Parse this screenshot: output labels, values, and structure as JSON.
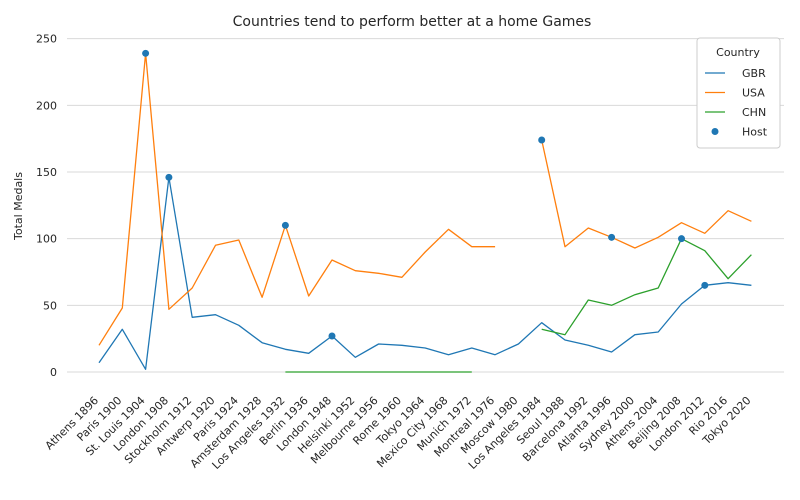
{
  "chart_data": {
    "type": "line",
    "title": "Countries tend to perform better at a home Games",
    "xlabel": "",
    "ylabel": "Total Medals",
    "ylim": [
      -12,
      252
    ],
    "yticks": [
      0,
      50,
      100,
      150,
      200,
      250
    ],
    "grid": "horizontal",
    "categories": [
      "Athens 1896",
      "Paris 1900",
      "St. Louis 1904",
      "London 1908",
      "Stockholm 1912",
      "Antwerp 1920",
      "Paris 1924",
      "Amsterdam 1928",
      "Los Angeles 1932",
      "Berlin 1936",
      "London 1948",
      "Helsinki 1952",
      "Melbourne 1956",
      "Rome 1960",
      "Tokyo 1964",
      "Mexico City 1968",
      "Munich 1972",
      "Montreal 1976",
      "Moscow 1980",
      "Los Angeles 1984",
      "Seoul 1988",
      "Barcelona 1992",
      "Atlanta 1996",
      "Sydney 2000",
      "Athens 2004",
      "Beijing 2008",
      "London 2012",
      "Rio 2016",
      "Tokyo 2020"
    ],
    "series": [
      {
        "name": "GBR",
        "color": "#1f77b4",
        "values": [
          7,
          32,
          2,
          146,
          41,
          43,
          35,
          22,
          17,
          14,
          27,
          11,
          21,
          20,
          18,
          13,
          18,
          13,
          21,
          37,
          24,
          20,
          15,
          28,
          30,
          51,
          65,
          67,
          65
        ]
      },
      {
        "name": "USA",
        "color": "#ff7f0e",
        "values": [
          20,
          48,
          239,
          47,
          63,
          95,
          99,
          56,
          110,
          57,
          84,
          76,
          74,
          71,
          90,
          107,
          94,
          94,
          null,
          174,
          94,
          108,
          101,
          93,
          101,
          112,
          104,
          121,
          113
        ]
      },
      {
        "name": "CHN",
        "color": "#2ca02c",
        "values": [
          null,
          null,
          null,
          null,
          null,
          null,
          null,
          null,
          0,
          0,
          0,
          0,
          0,
          0,
          0,
          0,
          0,
          null,
          null,
          32,
          28,
          54,
          50,
          58,
          63,
          100,
          91,
          70,
          88
        ]
      }
    ],
    "host": {
      "name": "Host",
      "color": "#1f77b4",
      "points": [
        {
          "x": "St. Louis 1904",
          "y": 239
        },
        {
          "x": "London 1908",
          "y": 146
        },
        {
          "x": "Los Angeles 1932",
          "y": 110
        },
        {
          "x": "London 1948",
          "y": 27
        },
        {
          "x": "Los Angeles 1984",
          "y": 174
        },
        {
          "x": "Atlanta 1996",
          "y": 101
        },
        {
          "x": "Beijing 2008",
          "y": 100
        },
        {
          "x": "London 2012",
          "y": 65
        }
      ]
    },
    "legend": {
      "title": "Country",
      "position": "top-right"
    }
  }
}
